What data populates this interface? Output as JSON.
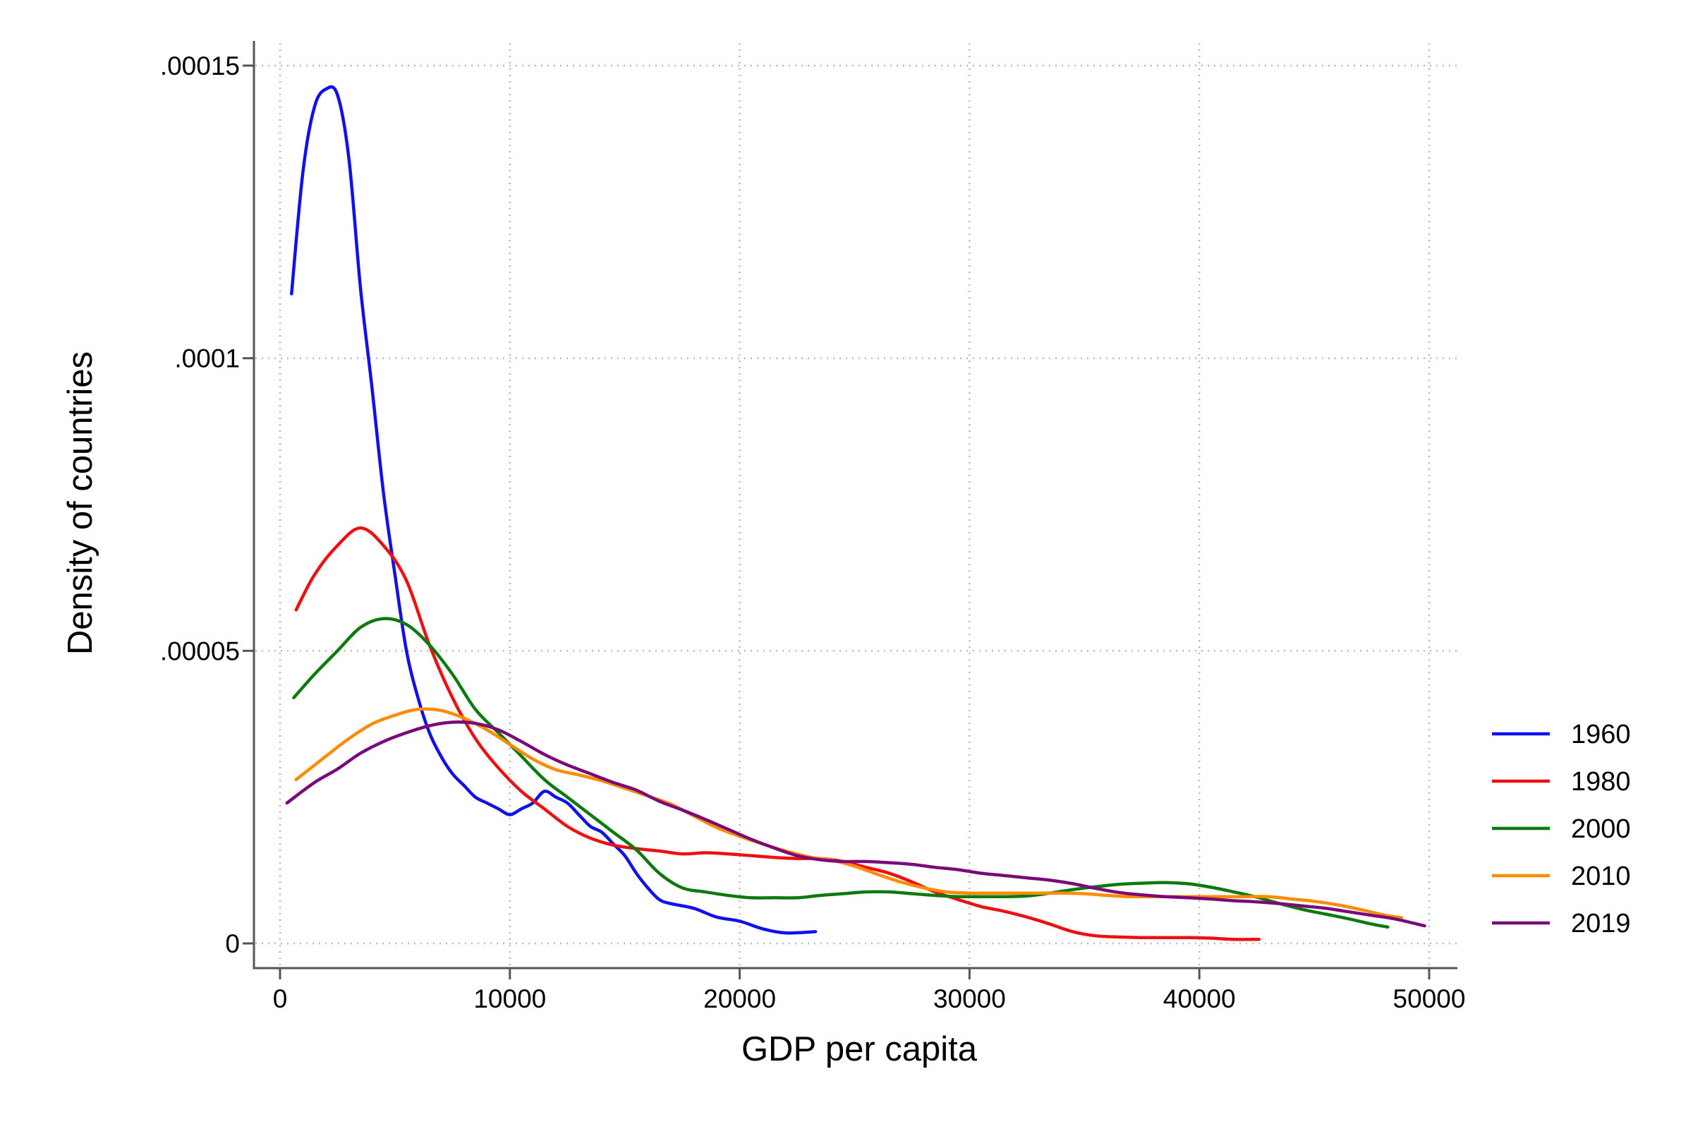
{
  "chart_data": {
    "type": "line",
    "title": "",
    "xlabel": "GDP per capita",
    "ylabel": "Density of countries",
    "xlim": [
      0,
      50000
    ],
    "ylim": [
      0,
      0.00015
    ],
    "xticks": [
      0,
      10000,
      20000,
      30000,
      40000,
      50000
    ],
    "xtick_labels": [
      "0",
      "10000",
      "20000",
      "30000",
      "40000",
      "50000"
    ],
    "yticks": [
      0,
      5e-05,
      0.0001,
      0.00015
    ],
    "ytick_labels": [
      "0",
      ".00005",
      ".0001",
      ".00015"
    ],
    "grid": true,
    "legend_position": "right",
    "series": [
      {
        "name": "1960",
        "color": "#1010ee",
        "points": [
          [
            500,
            0.000111
          ],
          [
            1000,
            0.000132
          ],
          [
            1500,
            0.000143
          ],
          [
            2000,
            0.000146
          ],
          [
            2500,
            0.000145
          ],
          [
            3000,
            0.000134
          ],
          [
            3500,
            0.000112
          ],
          [
            4000,
            9.5e-05
          ],
          [
            4500,
            7.7e-05
          ],
          [
            5000,
            6.3e-05
          ],
          [
            5500,
            5e-05
          ],
          [
            6000,
            4.2e-05
          ],
          [
            6500,
            3.6e-05
          ],
          [
            7000,
            3.2e-05
          ],
          [
            7500,
            2.9e-05
          ],
          [
            8000,
            2.7e-05
          ],
          [
            8500,
            2.5e-05
          ],
          [
            9000,
            2.4e-05
          ],
          [
            9500,
            2.3e-05
          ],
          [
            10000,
            2.2e-05
          ],
          [
            10500,
            2.3e-05
          ],
          [
            11000,
            2.4e-05
          ],
          [
            11500,
            2.6e-05
          ],
          [
            12000,
            2.5e-05
          ],
          [
            12500,
            2.4e-05
          ],
          [
            13000,
            2.2e-05
          ],
          [
            13500,
            2e-05
          ],
          [
            14000,
            1.9e-05
          ],
          [
            14500,
            1.7e-05
          ],
          [
            15000,
            1.5e-05
          ],
          [
            15500,
            1.2e-05
          ],
          [
            16000,
            9.5e-06
          ],
          [
            16500,
            7.5e-06
          ],
          [
            17000,
            6.8e-06
          ],
          [
            18000,
            6e-06
          ],
          [
            19000,
            4.5e-06
          ],
          [
            20000,
            3.8e-06
          ],
          [
            21000,
            2.5e-06
          ],
          [
            22000,
            1.8e-06
          ],
          [
            23300,
            2e-06
          ]
        ]
      },
      {
        "name": "1980",
        "color": "#ee1010",
        "points": [
          [
            700,
            5.7e-05
          ],
          [
            1500,
            6.3e-05
          ],
          [
            2500,
            6.8e-05
          ],
          [
            3500,
            7.1e-05
          ],
          [
            4500,
            6.8e-05
          ],
          [
            5500,
            6.2e-05
          ],
          [
            6500,
            5.1e-05
          ],
          [
            7500,
            4.2e-05
          ],
          [
            8500,
            3.5e-05
          ],
          [
            9500,
            3e-05
          ],
          [
            10500,
            2.6e-05
          ],
          [
            11500,
            2.3e-05
          ],
          [
            12500,
            2e-05
          ],
          [
            13500,
            1.8e-05
          ],
          [
            14500,
            1.68e-05
          ],
          [
            15500,
            1.62e-05
          ],
          [
            16500,
            1.58e-05
          ],
          [
            17500,
            1.53e-05
          ],
          [
            18500,
            1.55e-05
          ],
          [
            19500,
            1.53e-05
          ],
          [
            20500,
            1.5e-05
          ],
          [
            21500,
            1.47e-05
          ],
          [
            22500,
            1.45e-05
          ],
          [
            23500,
            1.45e-05
          ],
          [
            24500,
            1.4e-05
          ],
          [
            25500,
            1.3e-05
          ],
          [
            26500,
            1.2e-05
          ],
          [
            27500,
            1.05e-05
          ],
          [
            28500,
            8.8e-06
          ],
          [
            29500,
            7.5e-06
          ],
          [
            30500,
            6.3e-06
          ],
          [
            31500,
            5.5e-06
          ],
          [
            32500,
            4.5e-06
          ],
          [
            33500,
            3.3e-06
          ],
          [
            34500,
            2e-06
          ],
          [
            35500,
            1.3e-06
          ],
          [
            36500,
            1.1e-06
          ],
          [
            37500,
            1e-06
          ],
          [
            38500,
            1e-06
          ],
          [
            39500,
            1e-06
          ],
          [
            40500,
            9e-07
          ],
          [
            41500,
            7e-07
          ],
          [
            42600,
            7e-07
          ]
        ]
      },
      {
        "name": "2000",
        "color": "#0e7a0e",
        "points": [
          [
            600,
            4.2e-05
          ],
          [
            1500,
            4.6e-05
          ],
          [
            2500,
            5e-05
          ],
          [
            3500,
            5.4e-05
          ],
          [
            4500,
            5.55e-05
          ],
          [
            5500,
            5.45e-05
          ],
          [
            6500,
            5.1e-05
          ],
          [
            7500,
            4.6e-05
          ],
          [
            8500,
            4e-05
          ],
          [
            9500,
            3.6e-05
          ],
          [
            10500,
            3.2e-05
          ],
          [
            11500,
            2.8e-05
          ],
          [
            12500,
            2.5e-05
          ],
          [
            13500,
            2.2e-05
          ],
          [
            14500,
            1.9e-05
          ],
          [
            15500,
            1.6e-05
          ],
          [
            16500,
            1.2e-05
          ],
          [
            17500,
            9.5e-06
          ],
          [
            18500,
            8.8e-06
          ],
          [
            19500,
            8.2e-06
          ],
          [
            20500,
            7.8e-06
          ],
          [
            21500,
            7.8e-06
          ],
          [
            22500,
            7.8e-06
          ],
          [
            23500,
            8.2e-06
          ],
          [
            24500,
            8.5e-06
          ],
          [
            25500,
            8.8e-06
          ],
          [
            26500,
            8.8e-06
          ],
          [
            27500,
            8.5e-06
          ],
          [
            28500,
            8.2e-06
          ],
          [
            29500,
            8e-06
          ],
          [
            30500,
            8e-06
          ],
          [
            31500,
            8e-06
          ],
          [
            32500,
            8.1e-06
          ],
          [
            33500,
            8.6e-06
          ],
          [
            34500,
            9.2e-06
          ],
          [
            35500,
            9.7e-06
          ],
          [
            36500,
            1.01e-05
          ],
          [
            37500,
            1.03e-05
          ],
          [
            38500,
            1.04e-05
          ],
          [
            39500,
            1.02e-05
          ],
          [
            40500,
            9.6e-06
          ],
          [
            41500,
            8.8e-06
          ],
          [
            42500,
            7.9e-06
          ],
          [
            43500,
            6.8e-06
          ],
          [
            44500,
            5.8e-06
          ],
          [
            45500,
            5e-06
          ],
          [
            46500,
            4.2e-06
          ],
          [
            47500,
            3.3e-06
          ],
          [
            48200,
            2.8e-06
          ]
        ]
      },
      {
        "name": "2010",
        "color": "#ff8c00",
        "points": [
          [
            700,
            2.8e-05
          ],
          [
            2000,
            3.2e-05
          ],
          [
            3000,
            3.5e-05
          ],
          [
            4000,
            3.75e-05
          ],
          [
            5000,
            3.9e-05
          ],
          [
            6000,
            4e-05
          ],
          [
            7000,
            3.98e-05
          ],
          [
            8000,
            3.85e-05
          ],
          [
            9000,
            3.65e-05
          ],
          [
            10000,
            3.4e-05
          ],
          [
            11000,
            3.15e-05
          ],
          [
            12000,
            2.97e-05
          ],
          [
            13000,
            2.88e-05
          ],
          [
            14000,
            2.78e-05
          ],
          [
            15000,
            2.65e-05
          ],
          [
            16000,
            2.52e-05
          ],
          [
            17000,
            2.38e-05
          ],
          [
            18000,
            2.18e-05
          ],
          [
            19000,
            1.98e-05
          ],
          [
            20000,
            1.83e-05
          ],
          [
            21000,
            1.7e-05
          ],
          [
            22000,
            1.58e-05
          ],
          [
            23000,
            1.48e-05
          ],
          [
            24000,
            1.42e-05
          ],
          [
            25000,
            1.32e-05
          ],
          [
            26000,
            1.18e-05
          ],
          [
            27000,
            1.05e-05
          ],
          [
            28000,
            9.5e-06
          ],
          [
            29000,
            8.8e-06
          ],
          [
            30000,
            8.6e-06
          ],
          [
            31000,
            8.6e-06
          ],
          [
            32000,
            8.6e-06
          ],
          [
            33000,
            8.6e-06
          ],
          [
            34000,
            8.6e-06
          ],
          [
            35000,
            8.5e-06
          ],
          [
            36000,
            8.2e-06
          ],
          [
            37000,
            8e-06
          ],
          [
            38000,
            8e-06
          ],
          [
            39000,
            8e-06
          ],
          [
            40000,
            8e-06
          ],
          [
            41000,
            8e-06
          ],
          [
            42000,
            8e-06
          ],
          [
            43000,
            8e-06
          ],
          [
            44000,
            7.6e-06
          ],
          [
            45000,
            7.2e-06
          ],
          [
            46000,
            6.6e-06
          ],
          [
            47000,
            5.8e-06
          ],
          [
            48000,
            4.9e-06
          ],
          [
            48800,
            4.4e-06
          ]
        ]
      },
      {
        "name": "2019",
        "color": "#7a0a7a",
        "points": [
          [
            300,
            2.4e-05
          ],
          [
            1500,
            2.75e-05
          ],
          [
            2500,
            2.98e-05
          ],
          [
            3500,
            3.25e-05
          ],
          [
            4500,
            3.45e-05
          ],
          [
            5500,
            3.6e-05
          ],
          [
            6500,
            3.72e-05
          ],
          [
            7500,
            3.78e-05
          ],
          [
            8500,
            3.76e-05
          ],
          [
            9500,
            3.65e-05
          ],
          [
            10500,
            3.45e-05
          ],
          [
            11500,
            3.23e-05
          ],
          [
            12500,
            3.05e-05
          ],
          [
            13500,
            2.9e-05
          ],
          [
            14500,
            2.75e-05
          ],
          [
            15500,
            2.62e-05
          ],
          [
            16500,
            2.43e-05
          ],
          [
            17500,
            2.28e-05
          ],
          [
            18500,
            2.12e-05
          ],
          [
            19500,
            1.95e-05
          ],
          [
            20500,
            1.78e-05
          ],
          [
            21500,
            1.63e-05
          ],
          [
            22500,
            1.5e-05
          ],
          [
            23500,
            1.43e-05
          ],
          [
            24500,
            1.4e-05
          ],
          [
            25500,
            1.4e-05
          ],
          [
            26500,
            1.38e-05
          ],
          [
            27500,
            1.35e-05
          ],
          [
            28500,
            1.3e-05
          ],
          [
            29500,
            1.26e-05
          ],
          [
            30500,
            1.2e-05
          ],
          [
            31500,
            1.16e-05
          ],
          [
            32500,
            1.12e-05
          ],
          [
            33500,
            1.08e-05
          ],
          [
            34500,
            1.02e-05
          ],
          [
            35500,
            9.4e-06
          ],
          [
            36500,
            8.7e-06
          ],
          [
            37500,
            8.3e-06
          ],
          [
            38500,
            8e-06
          ],
          [
            39500,
            7.8e-06
          ],
          [
            40500,
            7.6e-06
          ],
          [
            41500,
            7.3e-06
          ],
          [
            42500,
            7.1e-06
          ],
          [
            43500,
            6.8e-06
          ],
          [
            44500,
            6.4e-06
          ],
          [
            45500,
            6e-06
          ],
          [
            46500,
            5.4e-06
          ],
          [
            47500,
            4.8e-06
          ],
          [
            48500,
            4.2e-06
          ],
          [
            49800,
            3e-06
          ]
        ]
      }
    ]
  }
}
